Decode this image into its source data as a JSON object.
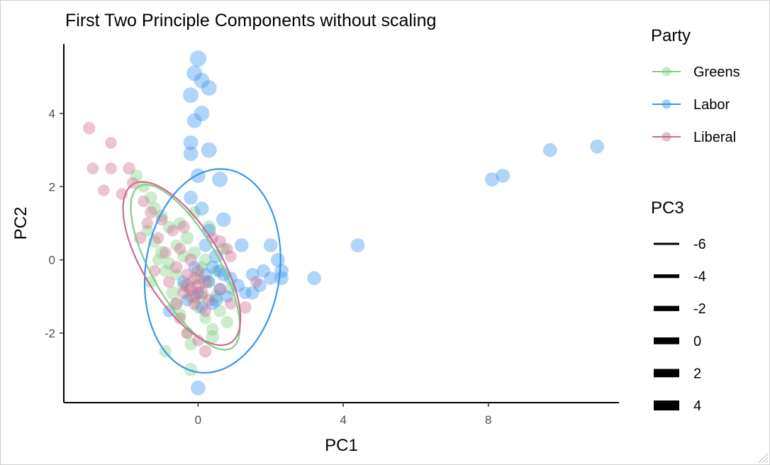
{
  "chart_data": {
    "type": "scatter",
    "title": "First Two Principle Components without scaling",
    "xlabel": "PC1",
    "ylabel": "PC2",
    "xlim": [
      -3.7,
      11.6
    ],
    "ylim": [
      -3.9,
      5.9
    ],
    "xticks": [
      0,
      4,
      8
    ],
    "yticks": [
      -2,
      0,
      2,
      4
    ],
    "grid": false,
    "legend_placement": "right",
    "legends": {
      "color": {
        "title": "Party",
        "entries": [
          {
            "name": "Greens",
            "color": "#7fcf85"
          },
          {
            "name": "Labor",
            "color": "#3a95f0"
          },
          {
            "name": "Liberal",
            "color": "#cc6b8e"
          }
        ]
      },
      "size": {
        "title": "PC3",
        "entries": [
          {
            "label": "-6",
            "value": -6
          },
          {
            "label": "-4",
            "value": -4
          },
          {
            "label": "-2",
            "value": -2
          },
          {
            "label": "0",
            "value": 0
          },
          {
            "label": "2",
            "value": 2
          },
          {
            "label": "4",
            "value": 4
          }
        ]
      }
    },
    "series": [
      {
        "name": "Greens",
        "color": "#7fcf85",
        "points": [
          [
            -1.7,
            2.3,
            0
          ],
          [
            -1.5,
            2.0,
            -1
          ],
          [
            -1.3,
            1.7,
            0
          ],
          [
            -1.2,
            1.4,
            1
          ],
          [
            -1.0,
            1.2,
            0
          ],
          [
            -1.4,
            0.8,
            -1
          ],
          [
            -1.2,
            0.5,
            0
          ],
          [
            -1.0,
            0.2,
            1
          ],
          [
            -0.8,
            -0.1,
            0
          ],
          [
            -0.6,
            -0.4,
            -1
          ],
          [
            -0.4,
            -0.7,
            0
          ],
          [
            -0.2,
            -1.0,
            1
          ],
          [
            0.0,
            -1.3,
            0
          ],
          [
            0.2,
            -1.6,
            -1
          ],
          [
            0.4,
            -1.9,
            0
          ],
          [
            -0.5,
            1.0,
            0
          ],
          [
            -0.3,
            0.6,
            1
          ],
          [
            -0.1,
            0.2,
            0
          ],
          [
            0.1,
            -0.2,
            -1
          ],
          [
            0.3,
            -0.6,
            0
          ],
          [
            0.5,
            -1.0,
            1
          ],
          [
            0.6,
            -1.4,
            0
          ],
          [
            -0.8,
            0.9,
            0
          ],
          [
            -0.6,
            0.4,
            -1
          ],
          [
            -0.9,
            -0.3,
            0
          ],
          [
            -0.7,
            -0.9,
            1
          ],
          [
            -0.5,
            -1.5,
            0
          ],
          [
            -0.3,
            -2.0,
            -1
          ],
          [
            -0.2,
            -2.3,
            0
          ],
          [
            -0.9,
            -2.5,
            0
          ],
          [
            -0.2,
            -3.0,
            1
          ],
          [
            0.8,
            -1.7,
            0
          ],
          [
            0.9,
            -0.8,
            -1
          ],
          [
            0.7,
            0.3,
            0
          ],
          [
            0.3,
            0.9,
            1
          ],
          [
            -0.1,
            1.3,
            0
          ],
          [
            -1.1,
            0.0,
            -1
          ],
          [
            -1.3,
            -0.6,
            0
          ],
          [
            -0.4,
            0.1,
            0
          ],
          [
            0.0,
            -0.5,
            1
          ],
          [
            0.2,
            0.0,
            0
          ],
          [
            0.5,
            -0.3,
            -1
          ],
          [
            -0.6,
            -1.2,
            0
          ],
          [
            0.1,
            -1.0,
            0
          ],
          [
            0.4,
            -2.1,
            1
          ]
        ]
      },
      {
        "name": "Labor",
        "color": "#3a95f0",
        "points": [
          [
            0.0,
            5.5,
            5
          ],
          [
            -0.1,
            5.1,
            4
          ],
          [
            0.1,
            4.9,
            4
          ],
          [
            0.3,
            4.7,
            4
          ],
          [
            -0.2,
            4.5,
            4
          ],
          [
            0.1,
            4.0,
            4
          ],
          [
            -0.1,
            3.8,
            3
          ],
          [
            -0.2,
            3.2,
            3
          ],
          [
            -0.2,
            2.9,
            3
          ],
          [
            0.3,
            3.0,
            4
          ],
          [
            0.0,
            2.3,
            3
          ],
          [
            0.6,
            2.2,
            4
          ],
          [
            -0.2,
            1.7,
            2
          ],
          [
            0.1,
            1.4,
            2
          ],
          [
            0.7,
            1.1,
            3
          ],
          [
            0.3,
            0.8,
            2
          ],
          [
            0.2,
            0.4,
            1
          ],
          [
            0.5,
            0.1,
            2
          ],
          [
            0.6,
            -0.3,
            1
          ],
          [
            0.3,
            -0.6,
            0
          ],
          [
            0.0,
            -0.9,
            0
          ],
          [
            -0.3,
            -1.1,
            0
          ],
          [
            0.5,
            -1.1,
            1
          ],
          [
            0.9,
            -0.5,
            1
          ],
          [
            1.1,
            -0.7,
            1
          ],
          [
            1.3,
            -0.9,
            0
          ],
          [
            1.5,
            -0.4,
            1
          ],
          [
            1.7,
            -0.7,
            1
          ],
          [
            1.8,
            -0.3,
            1
          ],
          [
            2.0,
            -0.5,
            1
          ],
          [
            2.0,
            0.4,
            2
          ],
          [
            2.2,
            0.0,
            2
          ],
          [
            2.3,
            -0.3,
            2
          ],
          [
            2.3,
            -0.5,
            2
          ],
          [
            1.2,
            0.4,
            2
          ],
          [
            1.5,
            -0.9,
            1
          ],
          [
            -0.8,
            -1.4,
            0
          ],
          [
            0.1,
            -1.3,
            0
          ],
          [
            0.4,
            -1.2,
            0
          ],
          [
            0.2,
            -0.4,
            1
          ],
          [
            -0.1,
            -0.2,
            0
          ],
          [
            0.6,
            -0.8,
            0
          ],
          [
            0.8,
            -1.0,
            0
          ],
          [
            0.0,
            -3.5,
            3
          ],
          [
            3.2,
            -0.5,
            2
          ],
          [
            4.4,
            0.4,
            2
          ],
          [
            8.1,
            2.2,
            2
          ],
          [
            8.4,
            2.3,
            2
          ],
          [
            9.7,
            3.0,
            2
          ],
          [
            11.0,
            3.1,
            2
          ],
          [
            0.4,
            -0.2,
            1
          ],
          [
            0.7,
            -0.4,
            1
          ],
          [
            -0.4,
            -0.6,
            0
          ]
        ]
      },
      {
        "name": "Liberal",
        "color": "#cc6b8e",
        "points": [
          [
            -3.0,
            3.6,
            0
          ],
          [
            -2.4,
            3.2,
            -1
          ],
          [
            -2.9,
            2.5,
            -1
          ],
          [
            -2.4,
            2.5,
            -1
          ],
          [
            -1.9,
            2.5,
            0
          ],
          [
            -2.6,
            1.9,
            -1
          ],
          [
            -2.1,
            1.8,
            -1
          ],
          [
            -1.8,
            2.1,
            -1
          ],
          [
            -1.5,
            1.6,
            -1
          ],
          [
            -1.3,
            1.3,
            0
          ],
          [
            -1.0,
            1.1,
            -1
          ],
          [
            -1.4,
            1.0,
            -1
          ],
          [
            -1.6,
            0.6,
            0
          ],
          [
            -1.1,
            0.6,
            -1
          ],
          [
            -0.7,
            0.8,
            -1
          ],
          [
            -0.4,
            0.9,
            0
          ],
          [
            -0.9,
            0.2,
            -1
          ],
          [
            -0.5,
            0.3,
            -1
          ],
          [
            0.4,
            0.6,
            -1
          ],
          [
            0.6,
            0.5,
            0
          ],
          [
            0.8,
            0.3,
            -1
          ],
          [
            0.9,
            0.1,
            -1
          ],
          [
            -0.6,
            -0.2,
            0
          ],
          [
            -0.3,
            -0.4,
            -1
          ],
          [
            -0.1,
            -0.5,
            0
          ],
          [
            0.0,
            -0.7,
            1
          ],
          [
            -0.2,
            -0.8,
            1
          ],
          [
            0.1,
            -0.9,
            1
          ],
          [
            0.2,
            -0.6,
            1
          ],
          [
            -0.4,
            -0.9,
            0
          ],
          [
            0.3,
            -1.1,
            0
          ],
          [
            -0.1,
            -1.2,
            0
          ],
          [
            0.2,
            -1.4,
            -1
          ],
          [
            -0.5,
            -1.6,
            -1
          ],
          [
            -0.3,
            -2.0,
            -1
          ],
          [
            0.0,
            -2.2,
            -1
          ],
          [
            0.2,
            -2.5,
            0
          ],
          [
            1.6,
            -0.6,
            -1
          ],
          [
            1.3,
            -1.3,
            0
          ],
          [
            0.9,
            -1.2,
            -1
          ],
          [
            0.6,
            -0.8,
            0
          ],
          [
            -0.8,
            -0.6,
            -1
          ],
          [
            -1.2,
            -0.3,
            -1
          ],
          [
            -0.2,
            0.0,
            0
          ],
          [
            0.0,
            -0.3,
            0
          ],
          [
            -0.6,
            -1.2,
            0
          ],
          [
            -0.3,
            -0.7,
            1
          ],
          [
            -0.1,
            -1.0,
            1
          ]
        ]
      }
    ],
    "ellipses": [
      {
        "series": "Greens",
        "cx": -0.35,
        "cy": -0.2,
        "rx": 2.55,
        "ry": 0.92,
        "angle_deg": -60
      },
      {
        "series": "Labor",
        "cx": 0.4,
        "cy": -0.3,
        "rx": 1.85,
        "ry": 2.8,
        "angle_deg": -8
      },
      {
        "series": "Liberal",
        "cx": -0.45,
        "cy": -0.1,
        "rx": 2.55,
        "ry": 1.05,
        "angle_deg": -58
      }
    ]
  }
}
